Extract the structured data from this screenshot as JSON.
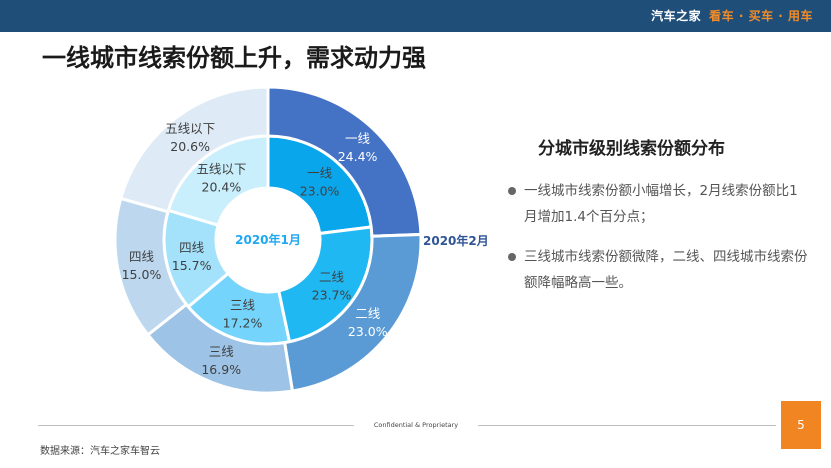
{
  "header": {
    "brand_name": "汽车之家",
    "brand_slogan": "看车 · 买车 · 用车"
  },
  "page_title": "一线城市线索份额上升，需求动力强",
  "chart_data": {
    "type": "donut",
    "title": "",
    "inner_ring_label": "2020年1月",
    "outer_ring_label": "2020年2月",
    "categories": [
      "一线",
      "二线",
      "三线",
      "四线",
      "五线以下"
    ],
    "series": [
      {
        "name": "2020年1月",
        "values": [
          23.0,
          23.7,
          17.2,
          15.7,
          20.4
        ],
        "labels": [
          "23.0%",
          "23.7%",
          "17.2%",
          "15.7%",
          "20.4%"
        ],
        "colors": [
          "#0aa6ec",
          "#1fb8f3",
          "#75d4fb",
          "#a4e2fb",
          "#c9eefc"
        ]
      },
      {
        "name": "2020年2月",
        "values": [
          24.4,
          23.0,
          16.9,
          15.0,
          20.6
        ],
        "labels": [
          "24.4%",
          "23.0%",
          "16.9%",
          "15.0%",
          "20.6%"
        ],
        "colors": [
          "#4472c4",
          "#5b9bd5",
          "#9dc3e6",
          "#bdd7ee",
          "#deebf7"
        ]
      }
    ]
  },
  "panel": {
    "title": "分城市级别线索份额分布",
    "bullets": [
      "一线城市线索份额小幅增长，2月线索份额比1月增加1.4个百分点；",
      "三线城市线索份额微降，二线、四线城市线索份额降幅略高一些。"
    ]
  },
  "footer": {
    "confidential": "Confidential & Proprietary",
    "source": "数据来源：汽车之家车智云",
    "page_number": "5"
  }
}
